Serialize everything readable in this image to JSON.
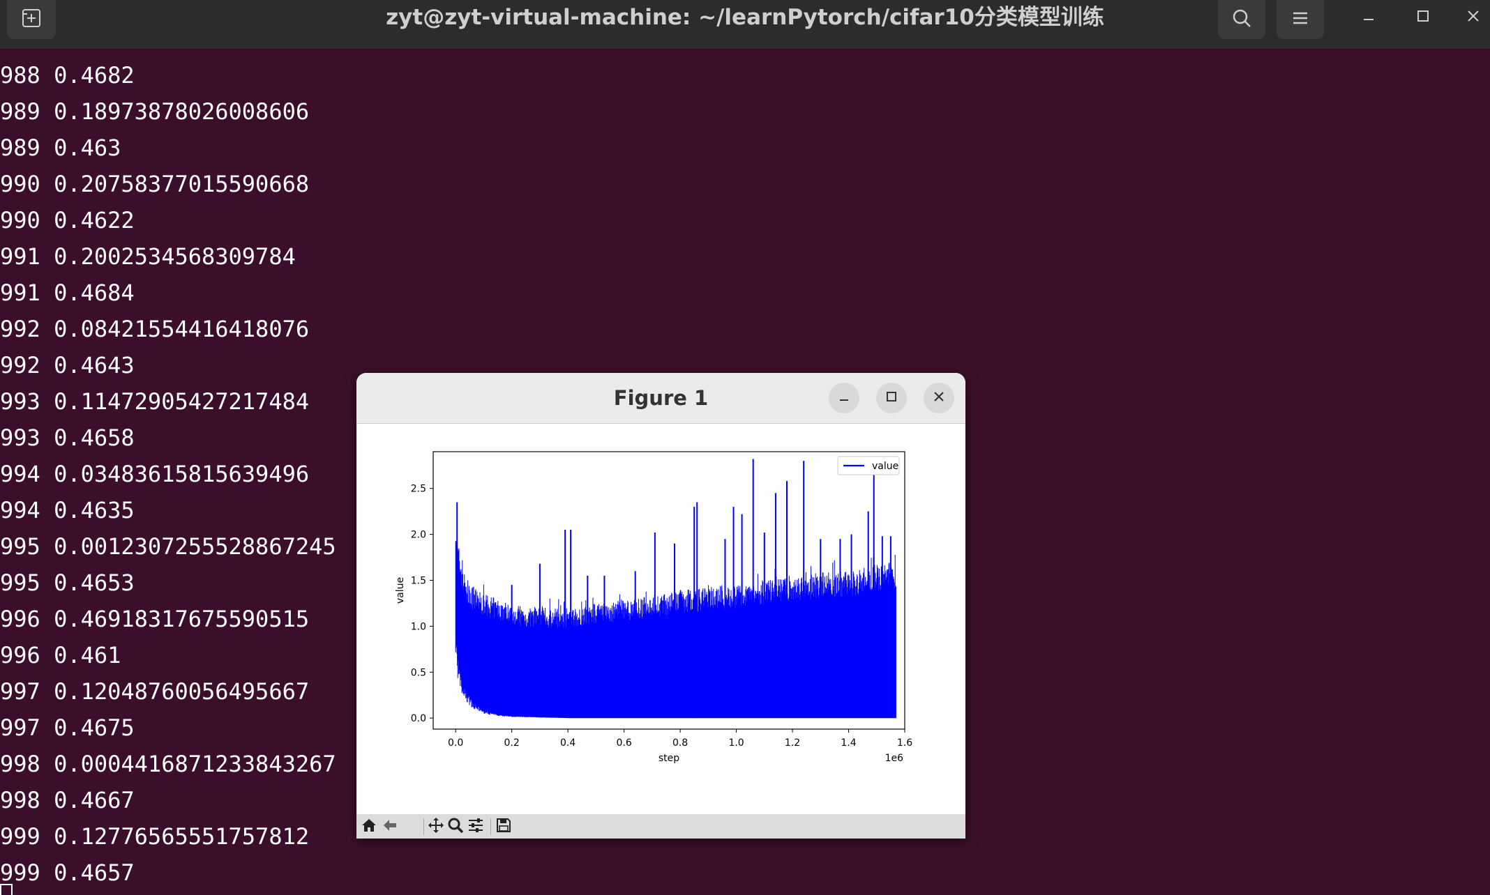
{
  "terminal": {
    "title": "zyt@zyt-virtual-machine: ~/learnPytorch/cifar10分类模型训练",
    "lines": [
      "988 0.4682",
      "989 0.18973878026008606",
      "989 0.463",
      "990 0.20758377015590668",
      "990 0.4622",
      "991 0.2002534568309784",
      "991 0.4684",
      "992 0.08421554416418076",
      "992 0.4643",
      "993 0.11472905427217484",
      "993 0.4658",
      "994 0.03483615815639496",
      "994 0.4635",
      "995 0.0012307255528867245",
      "995 0.4653",
      "996 0.46918317675590515",
      "996 0.461",
      "997 0.12048760056495667",
      "997 0.4675",
      "998 0.0004416871233843267",
      "998 0.4667",
      "999 0.12776565551757812",
      "999 0.4657"
    ]
  },
  "figure": {
    "title": "Figure 1",
    "toolbar": [
      "home-icon",
      "back-icon",
      "pan-icon",
      "zoom-icon",
      "configure-icon",
      "save-icon"
    ]
  },
  "chart_data": {
    "type": "line",
    "xlabel": "step",
    "ylabel": "value",
    "x_offset_label": "1e6",
    "xlim": [
      -0.08,
      1.6
    ],
    "ylim": [
      -0.12,
      2.9
    ],
    "xticks": [
      "0.0",
      "0.2",
      "0.4",
      "0.6",
      "0.8",
      "1.0",
      "1.2",
      "1.4",
      "1.6"
    ],
    "yticks": [
      "0.0",
      "0.5",
      "1.0",
      "1.5",
      "2.0",
      "2.5"
    ],
    "legend": "top-right",
    "series": [
      {
        "name": "value",
        "color": "#0000ff",
        "upper_envelope_x": [
          0.0,
          0.005,
          0.01,
          0.02,
          0.03,
          0.05,
          0.08,
          0.1,
          0.15,
          0.2,
          0.25,
          0.3,
          0.35,
          0.4,
          0.45,
          0.5,
          0.55,
          0.6,
          0.65,
          0.7,
          0.75,
          0.8,
          0.85,
          0.9,
          0.95,
          1.0,
          1.05,
          1.1,
          1.15,
          1.2,
          1.25,
          1.3,
          1.35,
          1.4,
          1.45,
          1.5,
          1.57
        ],
        "upper_envelope_y": [
          2.35,
          2.0,
          1.9,
          1.75,
          1.6,
          1.45,
          1.4,
          1.35,
          1.3,
          1.25,
          1.2,
          1.2,
          1.2,
          1.2,
          1.22,
          1.25,
          1.25,
          1.3,
          1.3,
          1.35,
          1.35,
          1.4,
          1.4,
          1.45,
          1.45,
          1.45,
          1.5,
          1.5,
          1.55,
          1.55,
          1.55,
          1.6,
          1.6,
          1.6,
          1.65,
          1.7,
          1.7
        ],
        "lower_envelope_x": [
          0.0,
          0.01,
          0.02,
          0.04,
          0.06,
          0.1,
          0.15,
          0.2,
          0.3,
          0.4,
          1.57
        ],
        "lower_envelope_y": [
          1.0,
          0.6,
          0.42,
          0.28,
          0.18,
          0.08,
          0.04,
          0.02,
          0.01,
          0.0,
          0.0
        ],
        "spikes_x": [
          0.005,
          0.2,
          0.3,
          0.39,
          0.41,
          0.47,
          0.53,
          0.64,
          0.71,
          0.78,
          0.85,
          0.86,
          0.96,
          0.99,
          1.02,
          1.06,
          1.1,
          1.14,
          1.18,
          1.24,
          1.3,
          1.37,
          1.41,
          1.47,
          1.49,
          1.52,
          1.55
        ],
        "spikes_y": [
          2.35,
          1.45,
          1.68,
          2.05,
          2.05,
          1.55,
          1.55,
          1.6,
          2.02,
          1.9,
          2.3,
          2.35,
          1.95,
          2.3,
          2.22,
          2.82,
          2.02,
          2.45,
          2.58,
          2.8,
          1.95,
          1.95,
          2.0,
          2.25,
          2.85,
          1.98,
          1.98
        ]
      }
    ]
  }
}
